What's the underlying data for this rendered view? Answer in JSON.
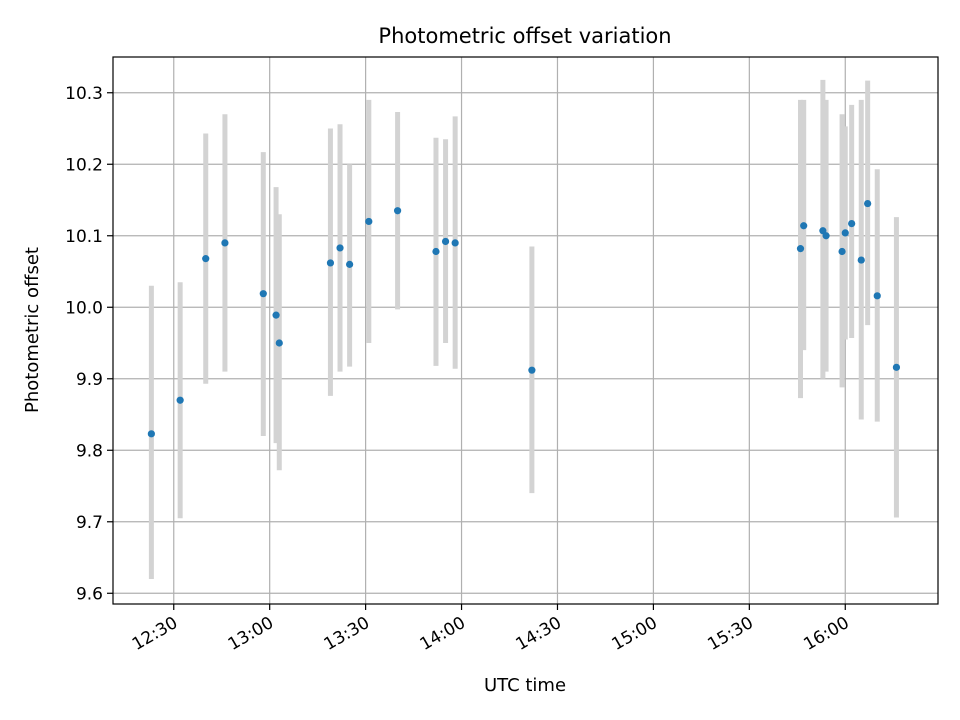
{
  "chart_data": {
    "type": "scatter",
    "title": "Photometric offset variation",
    "xlabel": "UTC time",
    "ylabel": "Photometric offset",
    "xlim": [
      "12:11",
      "16:29"
    ],
    "ylim": [
      9.585,
      10.35
    ],
    "x_ticks": [
      "12:30",
      "13:00",
      "13:30",
      "14:00",
      "14:30",
      "15:00",
      "15:30",
      "16:00"
    ],
    "y_ticks": [
      9.6,
      9.7,
      9.8,
      9.9,
      10.0,
      10.1,
      10.2,
      10.3
    ],
    "grid": true,
    "legend": "none",
    "colors": {
      "point": "#1f77b4",
      "error_bar": "#d3d3d3",
      "grid": "#b0b0b0"
    },
    "points": [
      {
        "x": "12:23",
        "y": 9.823,
        "yerr_low": 9.62,
        "yerr_high": 10.03
      },
      {
        "x": "12:32",
        "y": 9.87,
        "yerr_low": 9.705,
        "yerr_high": 10.035
      },
      {
        "x": "12:40",
        "y": 10.068,
        "yerr_low": 9.893,
        "yerr_high": 10.243
      },
      {
        "x": "12:46",
        "y": 10.09,
        "yerr_low": 9.91,
        "yerr_high": 10.27
      },
      {
        "x": "12:58",
        "y": 10.019,
        "yerr_low": 9.82,
        "yerr_high": 10.217
      },
      {
        "x": "13:02",
        "y": 9.989,
        "yerr_low": 9.81,
        "yerr_high": 10.168
      },
      {
        "x": "13:03",
        "y": 9.95,
        "yerr_low": 9.772,
        "yerr_high": 10.13
      },
      {
        "x": "13:19",
        "y": 10.062,
        "yerr_low": 9.876,
        "yerr_high": 10.25
      },
      {
        "x": "13:22",
        "y": 10.083,
        "yerr_low": 9.91,
        "yerr_high": 10.256
      },
      {
        "x": "13:25",
        "y": 10.06,
        "yerr_low": 9.917,
        "yerr_high": 10.2
      },
      {
        "x": "13:31",
        "y": 10.12,
        "yerr_low": 9.95,
        "yerr_high": 10.29
      },
      {
        "x": "13:40",
        "y": 10.135,
        "yerr_low": 9.997,
        "yerr_high": 10.273
      },
      {
        "x": "13:52",
        "y": 10.078,
        "yerr_low": 9.918,
        "yerr_high": 10.237
      },
      {
        "x": "13:55",
        "y": 10.092,
        "yerr_low": 9.95,
        "yerr_high": 10.235
      },
      {
        "x": "13:58",
        "y": 10.09,
        "yerr_low": 9.914,
        "yerr_high": 10.267
      },
      {
        "x": "14:22",
        "y": 9.912,
        "yerr_low": 9.74,
        "yerr_high": 10.085
      },
      {
        "x": "15:46",
        "y": 10.082,
        "yerr_low": 9.873,
        "yerr_high": 10.29
      },
      {
        "x": "15:47",
        "y": 10.114,
        "yerr_low": 9.94,
        "yerr_high": 10.29
      },
      {
        "x": "15:53",
        "y": 10.107,
        "yerr_low": 9.9,
        "yerr_high": 10.318
      },
      {
        "x": "15:54",
        "y": 10.1,
        "yerr_low": 9.91,
        "yerr_high": 10.29
      },
      {
        "x": "15:59",
        "y": 10.078,
        "yerr_low": 9.888,
        "yerr_high": 10.27
      },
      {
        "x": "16:00",
        "y": 10.104,
        "yerr_low": 9.955,
        "yerr_high": 10.253
      },
      {
        "x": "16:02",
        "y": 10.117,
        "yerr_low": 9.957,
        "yerr_high": 10.283
      },
      {
        "x": "16:05",
        "y": 10.066,
        "yerr_low": 9.843,
        "yerr_high": 10.29
      },
      {
        "x": "16:07",
        "y": 10.145,
        "yerr_low": 9.975,
        "yerr_high": 10.317
      },
      {
        "x": "16:10",
        "y": 10.016,
        "yerr_low": 9.84,
        "yerr_high": 10.193
      },
      {
        "x": "16:16",
        "y": 9.916,
        "yerr_low": 9.706,
        "yerr_high": 10.126
      }
    ]
  }
}
